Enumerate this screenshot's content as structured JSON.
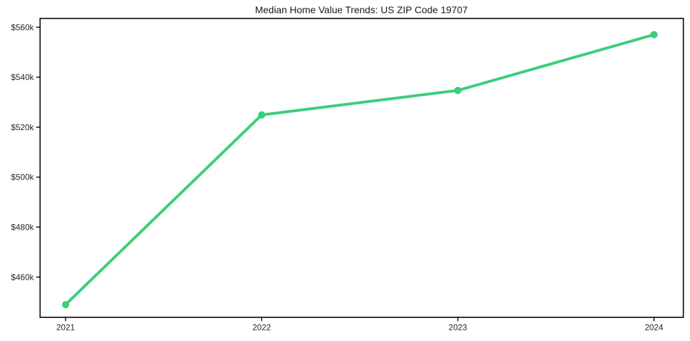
{
  "chart_data": {
    "type": "line",
    "title": "Median Home Value Trends: US ZIP Code 19707",
    "x": [
      2021,
      2022,
      2023,
      2024
    ],
    "x_tick_labels": [
      "2021",
      "2022",
      "2023",
      "2024"
    ],
    "values": [
      449000,
      524900,
      534700,
      557000
    ],
    "y_ticks": [
      460000,
      480000,
      500000,
      520000,
      540000,
      560000
    ],
    "y_tick_labels": [
      "$460k",
      "$480k",
      "$500k",
      "$520k",
      "$540k",
      "$560k"
    ],
    "xlim": [
      2020.87,
      2024.15
    ],
    "ylim": [
      443900,
      563500
    ],
    "grid": false,
    "legend_position": "none",
    "styles": {
      "line_color": "#3bce7c",
      "marker_color": "#3bce7c",
      "text_color": "#262626",
      "spine_color": "#000000",
      "background": "#ffffff"
    }
  }
}
